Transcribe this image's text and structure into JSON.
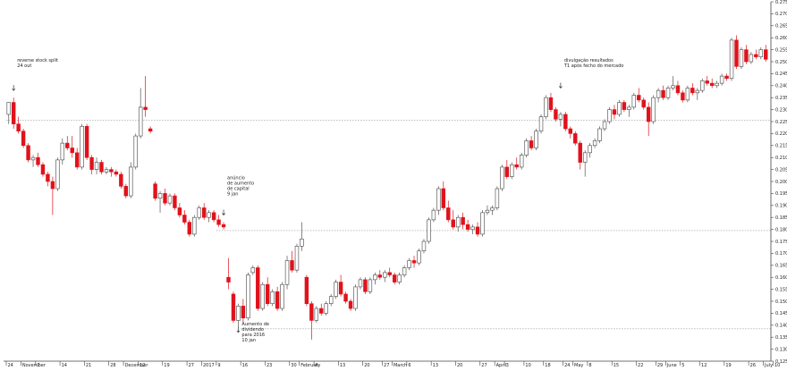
{
  "chart_data": {
    "type": "candlestick",
    "title": "",
    "xlabel": "",
    "ylabel": "",
    "ylim": [
      0.125,
      0.275
    ],
    "yticks": [
      "0.275",
      "0.270",
      "0.265",
      "0.260",
      "0.255",
      "0.250",
      "0.245",
      "0.240",
      "0.235",
      "0.230",
      "0.225",
      "0.220",
      "0.215",
      "0.210",
      "0.205",
      "0.200",
      "0.195",
      "0.190",
      "0.185",
      "0.180",
      "0.175",
      "0.170",
      "0.165",
      "0.160",
      "0.155",
      "0.150",
      "0.145",
      "0.140",
      "0.135",
      "0.130",
      "0.125"
    ],
    "xticks": [
      {
        "i": 0,
        "label": "24"
      },
      {
        "i": 3,
        "label": "November"
      },
      {
        "i": 6,
        "label": "7"
      },
      {
        "i": 11,
        "label": "14"
      },
      {
        "i": 16,
        "label": "21"
      },
      {
        "i": 21,
        "label": "28"
      },
      {
        "i": 24,
        "label": "December"
      },
      {
        "i": 27,
        "label": "12"
      },
      {
        "i": 32,
        "label": "19"
      },
      {
        "i": 37,
        "label": "27"
      },
      {
        "i": 40,
        "label": "2017"
      },
      {
        "i": 43,
        "label": "9"
      },
      {
        "i": 48,
        "label": "16"
      },
      {
        "i": 53,
        "label": "23"
      },
      {
        "i": 58,
        "label": "30"
      },
      {
        "i": 60,
        "label": "February"
      },
      {
        "i": 63,
        "label": "6"
      },
      {
        "i": 68,
        "label": "13"
      },
      {
        "i": 73,
        "label": "20"
      },
      {
        "i": 77,
        "label": "27"
      },
      {
        "i": 79,
        "label": "March"
      },
      {
        "i": 82,
        "label": "6"
      },
      {
        "i": 87,
        "label": "13"
      },
      {
        "i": 92,
        "label": "20"
      },
      {
        "i": 97,
        "label": "27"
      },
      {
        "i": 100,
        "label": "April"
      },
      {
        "i": 102,
        "label": "3"
      },
      {
        "i": 106,
        "label": "10"
      },
      {
        "i": 110,
        "label": "18"
      },
      {
        "i": 114,
        "label": "24"
      },
      {
        "i": 116,
        "label": "May"
      },
      {
        "i": 119,
        "label": "8"
      },
      {
        "i": 124,
        "label": "15"
      },
      {
        "i": 129,
        "label": "22"
      },
      {
        "i": 133,
        "label": "29"
      },
      {
        "i": 135,
        "label": "June"
      },
      {
        "i": 138,
        "label": "5"
      },
      {
        "i": 142,
        "label": "12"
      },
      {
        "i": 147,
        "label": "19"
      },
      {
        "i": 152,
        "label": "26"
      },
      {
        "i": 155,
        "label": "July"
      },
      {
        "i": 157,
        "label": "10"
      },
      {
        "i": 162,
        "label": "17"
      },
      {
        "i": 167,
        "label": "24"
      }
    ],
    "reference_lines": [
      {
        "y": 0.2255,
        "style": "dotted",
        "x_start": 0
      },
      {
        "y": 0.1795,
        "style": "dotted",
        "x_start": 43
      },
      {
        "y": 0.1385,
        "style": "dotted",
        "x_start": 48
      }
    ],
    "candles": [
      [
        0.228,
        0.233,
        0.224,
        0.233
      ],
      [
        0.233,
        0.235,
        0.222,
        0.224
      ],
      [
        0.224,
        0.227,
        0.22,
        0.221
      ],
      [
        0.221,
        0.222,
        0.214,
        0.215
      ],
      [
        0.215,
        0.216,
        0.208,
        0.209
      ],
      [
        0.209,
        0.211,
        0.206,
        0.21
      ],
      [
        0.21,
        0.212,
        0.206,
        0.207
      ],
      [
        0.207,
        0.208,
        0.202,
        0.203
      ],
      [
        0.203,
        0.204,
        0.198,
        0.2
      ],
      [
        0.2,
        0.202,
        0.186,
        0.197
      ],
      [
        0.197,
        0.21,
        0.196,
        0.209
      ],
      [
        0.209,
        0.218,
        0.207,
        0.216
      ],
      [
        0.216,
        0.219,
        0.213,
        0.214
      ],
      [
        0.214,
        0.219,
        0.21,
        0.212
      ],
      [
        0.212,
        0.214,
        0.205,
        0.206
      ],
      [
        0.206,
        0.224,
        0.205,
        0.223
      ],
      [
        0.223,
        0.224,
        0.209,
        0.21
      ],
      [
        0.21,
        0.211,
        0.203,
        0.205
      ],
      [
        0.205,
        0.21,
        0.203,
        0.208
      ],
      [
        0.208,
        0.209,
        0.203,
        0.204
      ],
      [
        0.204,
        0.206,
        0.203,
        0.205
      ],
      [
        0.205,
        0.206,
        0.202,
        0.204
      ],
      [
        0.204,
        0.205,
        0.202,
        0.203
      ],
      [
        0.203,
        0.204,
        0.197,
        0.198
      ],
      [
        0.198,
        0.199,
        0.193,
        0.194
      ],
      [
        0.194,
        0.208,
        0.193,
        0.206
      ],
      [
        0.206,
        0.22,
        0.205,
        0.219
      ],
      [
        0.219,
        0.239,
        0.218,
        0.231
      ],
      [
        0.231,
        0.244,
        0.227,
        0.23
      ],
      [
        0.222,
        0.223,
        0.22,
        0.221
      ],
      [
        0.199,
        0.2,
        0.192,
        0.193
      ],
      [
        0.193,
        0.196,
        0.187,
        0.195
      ],
      [
        0.195,
        0.197,
        0.19,
        0.191
      ],
      [
        0.191,
        0.195,
        0.19,
        0.194
      ],
      [
        0.194,
        0.195,
        0.188,
        0.189
      ],
      [
        0.189,
        0.191,
        0.185,
        0.186
      ],
      [
        0.186,
        0.188,
        0.182,
        0.183
      ],
      [
        0.183,
        0.184,
        0.177,
        0.178
      ],
      [
        0.178,
        0.186,
        0.177,
        0.185
      ],
      [
        0.185,
        0.19,
        0.184,
        0.189
      ],
      [
        0.189,
        0.191,
        0.184,
        0.185
      ],
      [
        0.185,
        0.188,
        0.183,
        0.187
      ],
      [
        0.187,
        0.188,
        0.183,
        0.184
      ],
      [
        0.184,
        0.186,
        0.181,
        0.182
      ],
      [
        0.182,
        0.183,
        0.18,
        0.181
      ],
      [
        0.16,
        0.168,
        0.155,
        0.158
      ],
      [
        0.153,
        0.154,
        0.141,
        0.142
      ],
      [
        0.142,
        0.149,
        0.139,
        0.148
      ],
      [
        0.148,
        0.151,
        0.141,
        0.143
      ],
      [
        0.143,
        0.162,
        0.142,
        0.161
      ],
      [
        0.162,
        0.165,
        0.161,
        0.164
      ],
      [
        0.164,
        0.165,
        0.146,
        0.147
      ],
      [
        0.147,
        0.158,
        0.146,
        0.157
      ],
      [
        0.157,
        0.16,
        0.148,
        0.149
      ],
      [
        0.149,
        0.155,
        0.148,
        0.154
      ],
      [
        0.154,
        0.156,
        0.146,
        0.147
      ],
      [
        0.147,
        0.158,
        0.146,
        0.157
      ],
      [
        0.157,
        0.169,
        0.155,
        0.167
      ],
      [
        0.167,
        0.171,
        0.162,
        0.163
      ],
      [
        0.163,
        0.174,
        0.162,
        0.173
      ],
      [
        0.173,
        0.183,
        0.171,
        0.176
      ],
      [
        0.16,
        0.161,
        0.148,
        0.149
      ],
      [
        0.149,
        0.15,
        0.134,
        0.142
      ],
      [
        0.142,
        0.148,
        0.141,
        0.147
      ],
      [
        0.147,
        0.149,
        0.144,
        0.145
      ],
      [
        0.145,
        0.15,
        0.144,
        0.149
      ],
      [
        0.149,
        0.153,
        0.148,
        0.152
      ],
      [
        0.152,
        0.159,
        0.151,
        0.158
      ],
      [
        0.158,
        0.161,
        0.152,
        0.153
      ],
      [
        0.153,
        0.154,
        0.149,
        0.15
      ],
      [
        0.15,
        0.151,
        0.146,
        0.147
      ],
      [
        0.147,
        0.157,
        0.146,
        0.156
      ],
      [
        0.156,
        0.16,
        0.155,
        0.159
      ],
      [
        0.159,
        0.16,
        0.153,
        0.154
      ],
      [
        0.154,
        0.16,
        0.153,
        0.159
      ],
      [
        0.159,
        0.162,
        0.157,
        0.161
      ],
      [
        0.161,
        0.163,
        0.159,
        0.16
      ],
      [
        0.16,
        0.163,
        0.158,
        0.162
      ],
      [
        0.162,
        0.164,
        0.16,
        0.161
      ],
      [
        0.161,
        0.162,
        0.157,
        0.158
      ],
      [
        0.158,
        0.162,
        0.157,
        0.161
      ],
      [
        0.161,
        0.165,
        0.16,
        0.164
      ],
      [
        0.164,
        0.168,
        0.163,
        0.167
      ],
      [
        0.167,
        0.169,
        0.164,
        0.166
      ],
      [
        0.166,
        0.172,
        0.165,
        0.171
      ],
      [
        0.171,
        0.176,
        0.17,
        0.175
      ],
      [
        0.175,
        0.185,
        0.174,
        0.184
      ],
      [
        0.184,
        0.189,
        0.183,
        0.188
      ],
      [
        0.188,
        0.198,
        0.186,
        0.197
      ],
      [
        0.197,
        0.2,
        0.188,
        0.189
      ],
      [
        0.189,
        0.192,
        0.183,
        0.184
      ],
      [
        0.184,
        0.188,
        0.18,
        0.181
      ],
      [
        0.181,
        0.186,
        0.179,
        0.185
      ],
      [
        0.185,
        0.187,
        0.18,
        0.182
      ],
      [
        0.182,
        0.184,
        0.179,
        0.18
      ],
      [
        0.18,
        0.182,
        0.178,
        0.181
      ],
      [
        0.181,
        0.183,
        0.177,
        0.178
      ],
      [
        0.178,
        0.188,
        0.177,
        0.187
      ],
      [
        0.187,
        0.19,
        0.186,
        0.188
      ],
      [
        0.188,
        0.19,
        0.186,
        0.189
      ],
      [
        0.189,
        0.198,
        0.188,
        0.197
      ],
      [
        0.197,
        0.207,
        0.196,
        0.206
      ],
      [
        0.206,
        0.209,
        0.201,
        0.202
      ],
      [
        0.202,
        0.208,
        0.201,
        0.207
      ],
      [
        0.207,
        0.21,
        0.205,
        0.206
      ],
      [
        0.206,
        0.212,
        0.205,
        0.211
      ],
      [
        0.211,
        0.218,
        0.21,
        0.217
      ],
      [
        0.217,
        0.219,
        0.213,
        0.214
      ],
      [
        0.214,
        0.222,
        0.213,
        0.221
      ],
      [
        0.221,
        0.228,
        0.22,
        0.227
      ],
      [
        0.227,
        0.236,
        0.226,
        0.235
      ],
      [
        0.235,
        0.237,
        0.229,
        0.23
      ],
      [
        0.23,
        0.231,
        0.225,
        0.226
      ],
      [
        0.226,
        0.229,
        0.223,
        0.228
      ],
      [
        0.228,
        0.229,
        0.221,
        0.222
      ],
      [
        0.222,
        0.223,
        0.218,
        0.22
      ],
      [
        0.22,
        0.221,
        0.215,
        0.216
      ],
      [
        0.216,
        0.217,
        0.205,
        0.208
      ],
      [
        0.208,
        0.213,
        0.202,
        0.212
      ],
      [
        0.212,
        0.216,
        0.21,
        0.215
      ],
      [
        0.215,
        0.218,
        0.214,
        0.217
      ],
      [
        0.217,
        0.223,
        0.216,
        0.222
      ],
      [
        0.222,
        0.226,
        0.221,
        0.225
      ],
      [
        0.225,
        0.231,
        0.224,
        0.23
      ],
      [
        0.23,
        0.232,
        0.226,
        0.228
      ],
      [
        0.228,
        0.234,
        0.227,
        0.233
      ],
      [
        0.233,
        0.234,
        0.229,
        0.23
      ],
      [
        0.23,
        0.232,
        0.227,
        0.231
      ],
      [
        0.231,
        0.237,
        0.23,
        0.236
      ],
      [
        0.236,
        0.239,
        0.233,
        0.234
      ],
      [
        0.234,
        0.235,
        0.23,
        0.231
      ],
      [
        0.231,
        0.233,
        0.219,
        0.225
      ],
      [
        0.225,
        0.236,
        0.224,
        0.235
      ],
      [
        0.235,
        0.239,
        0.233,
        0.238
      ],
      [
        0.238,
        0.24,
        0.234,
        0.235
      ],
      [
        0.235,
        0.24,
        0.234,
        0.239
      ],
      [
        0.239,
        0.244,
        0.238,
        0.24
      ],
      [
        0.24,
        0.242,
        0.236,
        0.237
      ],
      [
        0.237,
        0.238,
        0.233,
        0.234
      ],
      [
        0.234,
        0.24,
        0.233,
        0.239
      ],
      [
        0.239,
        0.241,
        0.236,
        0.237
      ],
      [
        0.237,
        0.239,
        0.234,
        0.238
      ],
      [
        0.238,
        0.243,
        0.237,
        0.242
      ],
      [
        0.242,
        0.244,
        0.24,
        0.241
      ],
      [
        0.241,
        0.243,
        0.239,
        0.24
      ],
      [
        0.24,
        0.242,
        0.239,
        0.241
      ],
      [
        0.241,
        0.245,
        0.24,
        0.244
      ],
      [
        0.244,
        0.245,
        0.242,
        0.243
      ],
      [
        0.243,
        0.26,
        0.242,
        0.259
      ],
      [
        0.259,
        0.261,
        0.247,
        0.248
      ],
      [
        0.248,
        0.256,
        0.247,
        0.255
      ],
      [
        0.255,
        0.257,
        0.249,
        0.25
      ],
      [
        0.25,
        0.254,
        0.249,
        0.253
      ],
      [
        0.253,
        0.255,
        0.251,
        0.252
      ],
      [
        0.252,
        0.256,
        0.251,
        0.255
      ],
      [
        0.255,
        0.257,
        0.25,
        0.251
      ]
    ],
    "annotations": [
      {
        "i": 1,
        "lines": [
          "reverse stock split",
          "24 out"
        ],
        "arrow_y": 0.238,
        "text_y": 0.25
      },
      {
        "i": 44,
        "lines": [
          "anúncio",
          "de aumento",
          "de capital",
          "9 jan"
        ],
        "arrow_y": 0.186,
        "text_y": 0.201
      },
      {
        "i": 47,
        "lines": [
          "Aumento de",
          "dividendo",
          "para 2016",
          "10 jan"
        ],
        "arrow_y": 0.137,
        "text_y": 0.14
      },
      {
        "i": 113,
        "lines": [
          "divulgação resultados",
          "T1 após fecho do mercado"
        ],
        "arrow_y": 0.239,
        "text_y": 0.25
      }
    ]
  }
}
